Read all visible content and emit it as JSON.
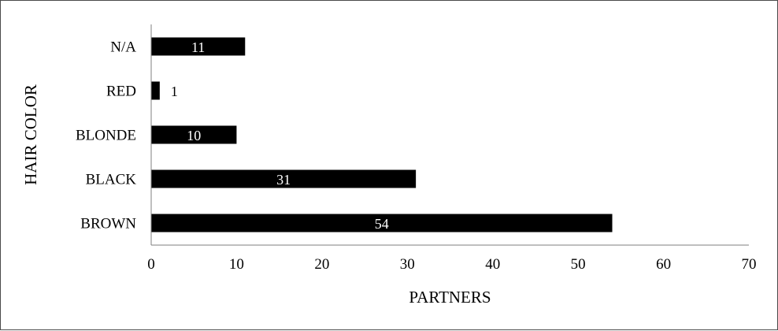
{
  "chart_data": {
    "type": "bar",
    "orientation": "horizontal",
    "categories": [
      "BROWN",
      "BLACK",
      "BLONDE",
      "RED",
      "N/A"
    ],
    "values": [
      54,
      31,
      10,
      1,
      11
    ],
    "xlabel": "PARTNERS",
    "ylabel": "HAIR COLOR",
    "xlim": [
      0,
      70
    ],
    "xticks": [
      0,
      10,
      20,
      30,
      40,
      50,
      60,
      70
    ],
    "grid": false,
    "legend": "none",
    "bar_color": "#000000",
    "label_color_inside": "#ffffff",
    "label_color_outside": "#000000"
  }
}
